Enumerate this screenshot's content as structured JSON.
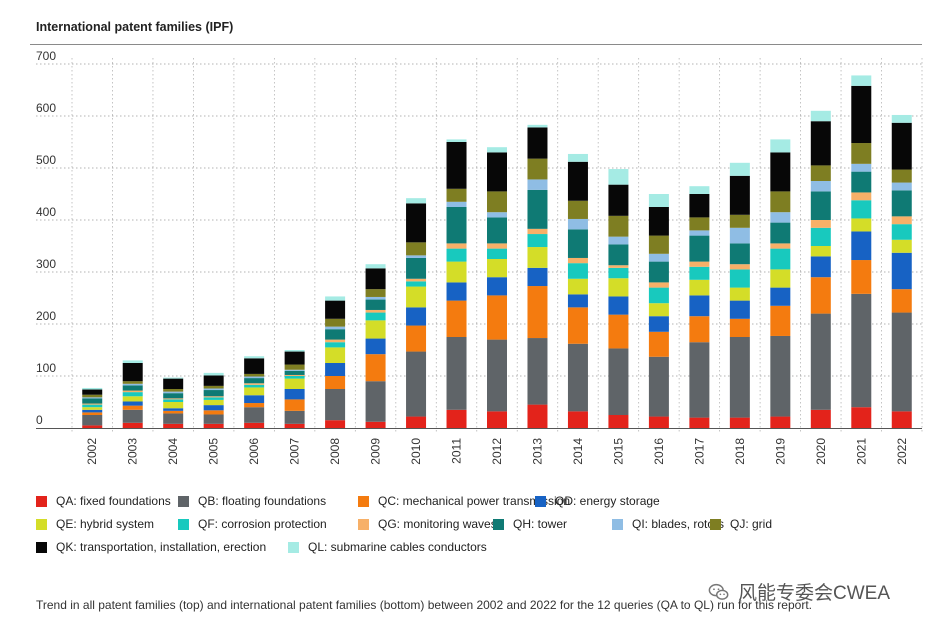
{
  "page": {
    "title": "International patent families (IPF)",
    "caption": "Trend in all patent families (top) and international patent families (bottom) between 2002 and 2022 for the 12 queries (QA to QL) run for this report.",
    "watermark": "风能专委会CWEA"
  },
  "chart_data": {
    "type": "bar",
    "stacked": true,
    "title": "International patent families (IPF)",
    "xlabel": "",
    "ylabel": "",
    "ylim": [
      0,
      700
    ],
    "yticks": [
      0,
      100,
      200,
      300,
      400,
      500,
      600,
      700
    ],
    "grid": true,
    "legend_position": "bottom",
    "categories": [
      "2002",
      "2003",
      "2004",
      "2005",
      "2006",
      "2007",
      "2008",
      "2009",
      "2010",
      "2011",
      "2012",
      "2013",
      "2014",
      "2015",
      "2016",
      "2017",
      "2018",
      "2019",
      "2020",
      "2021",
      "2022"
    ],
    "series": [
      {
        "name": "QA: fixed foundations",
        "color": "#e3231b",
        "values": [
          5,
          10,
          8,
          8,
          10,
          8,
          15,
          12,
          22,
          35,
          32,
          45,
          32,
          25,
          22,
          20,
          20,
          22,
          35,
          40,
          32
        ]
      },
      {
        "name": "QB: floating foundations",
        "color": "#5f6468",
        "values": [
          20,
          25,
          20,
          18,
          30,
          25,
          60,
          78,
          125,
          140,
          138,
          128,
          130,
          128,
          115,
          145,
          155,
          155,
          185,
          218,
          190
        ]
      },
      {
        "name": "QC: mechanical power transmission",
        "color": "#f47b0f",
        "values": [
          5,
          8,
          5,
          8,
          8,
          22,
          25,
          52,
          50,
          70,
          85,
          100,
          70,
          65,
          48,
          50,
          35,
          58,
          70,
          65,
          45
        ]
      },
      {
        "name": "QD: energy storage",
        "color": "#1762c4",
        "values": [
          5,
          8,
          5,
          10,
          15,
          20,
          25,
          30,
          35,
          35,
          35,
          35,
          25,
          35,
          30,
          40,
          35,
          35,
          40,
          55,
          70
        ]
      },
      {
        "name": "QE: hybrid system",
        "color": "#d4dd28",
        "values": [
          5,
          10,
          12,
          10,
          15,
          20,
          30,
          35,
          40,
          40,
          35,
          40,
          30,
          35,
          25,
          30,
          25,
          35,
          20,
          25,
          25
        ]
      },
      {
        "name": "QF: corrosion protection",
        "color": "#18c9be",
        "values": [
          5,
          8,
          5,
          5,
          5,
          5,
          10,
          15,
          10,
          25,
          20,
          25,
          30,
          20,
          30,
          25,
          35,
          40,
          35,
          35,
          30
        ]
      },
      {
        "name": "QG: monitoring waves",
        "color": "#f7b068",
        "values": [
          2,
          3,
          2,
          2,
          3,
          2,
          5,
          5,
          5,
          10,
          10,
          10,
          10,
          5,
          10,
          10,
          10,
          10,
          15,
          15,
          15
        ]
      },
      {
        "name": "QH: tower",
        "color": "#0f7a74",
        "values": [
          10,
          10,
          10,
          12,
          10,
          8,
          20,
          20,
          40,
          70,
          50,
          75,
          55,
          40,
          40,
          50,
          40,
          40,
          55,
          40,
          50
        ]
      },
      {
        "name": "QI: blades, rotors",
        "color": "#8fbde4",
        "values": [
          2,
          3,
          3,
          3,
          3,
          2,
          5,
          5,
          5,
          10,
          10,
          20,
          20,
          15,
          15,
          10,
          30,
          20,
          20,
          15,
          15
        ]
      },
      {
        "name": "QJ: grid",
        "color": "#7e7e22",
        "values": [
          5,
          5,
          5,
          5,
          5,
          10,
          15,
          15,
          25,
          25,
          40,
          40,
          35,
          40,
          35,
          25,
          25,
          40,
          30,
          40,
          25
        ]
      },
      {
        "name": "QK: transportation, installation, erection",
        "color": "#070707",
        "values": [
          10,
          35,
          20,
          20,
          30,
          25,
          35,
          40,
          75,
          90,
          75,
          60,
          75,
          60,
          55,
          45,
          75,
          75,
          85,
          110,
          90
        ]
      },
      {
        "name": "QL: submarine cables conductors",
        "color": "#a5ebe4",
        "values": [
          3,
          5,
          2,
          5,
          4,
          3,
          8,
          8,
          10,
          5,
          10,
          5,
          15,
          30,
          25,
          15,
          25,
          25,
          20,
          20,
          15
        ]
      }
    ]
  }
}
